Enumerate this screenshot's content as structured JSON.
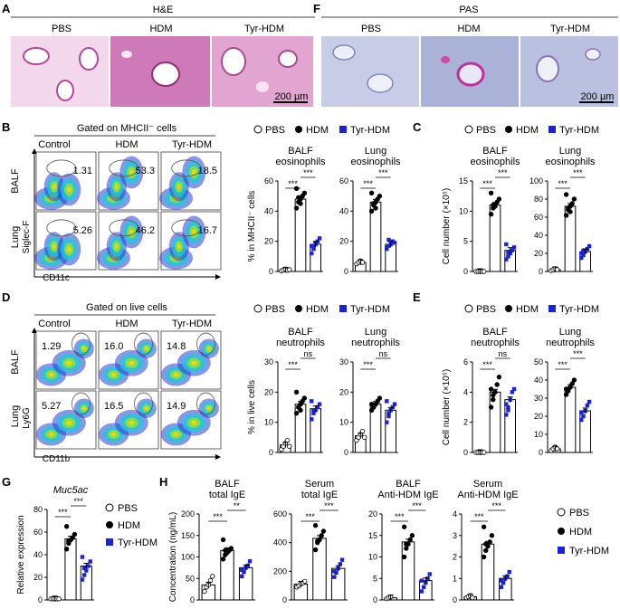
{
  "panels": {
    "A": {
      "letter": "A",
      "header": "H&E",
      "groups": [
        "PBS",
        "HDM",
        "Tyr-HDM"
      ],
      "scale": "200 µm"
    },
    "F": {
      "letter": "F",
      "header": "PAS",
      "groups": [
        "PBS",
        "HDM",
        "Tyr-HDM"
      ],
      "scale": "200 µm"
    },
    "B": {
      "letter": "B",
      "gate": "Gated on MHCII⁻ cells",
      "cols": [
        "Control",
        "HDM",
        "Tyr-HDM"
      ],
      "rows": [
        "BALF",
        "Lung"
      ],
      "yaxis": "Siglec-F",
      "xaxis": "CD11c",
      "values": [
        [
          "1.31",
          "53.3",
          "18.5"
        ],
        [
          "5.26",
          "46.2",
          "16.7"
        ]
      ]
    },
    "D": {
      "letter": "D",
      "gate": "Gated on live cells",
      "cols": [
        "Control",
        "HDM",
        "Tyr-HDM"
      ],
      "rows": [
        "BALF",
        "Lung"
      ],
      "yaxis": "Ly6G",
      "xaxis": "CD11b",
      "values": [
        [
          "1.29",
          "16.0",
          "14.8"
        ],
        [
          "5.27",
          "16.5",
          "14.9"
        ]
      ]
    },
    "C": {
      "letter": "C"
    },
    "E": {
      "letter": "E"
    },
    "G": {
      "letter": "G"
    },
    "H": {
      "letter": "H"
    }
  },
  "legend": {
    "pbs": "PBS",
    "hdm": "HDM",
    "tyr": "Tyr-HDM"
  },
  "colors": {
    "pbs": "#ffffff",
    "hdm": "#000000",
    "tyr": "#1a22d8",
    "he": "#cc5aa8",
    "pas": "#9aa6d0"
  },
  "chart_data": [
    {
      "id": "B-balf",
      "type": "bar",
      "title": "BALF\neosinophils",
      "ylabel": "% in MHCII⁻ cells",
      "ylim": [
        0,
        60
      ],
      "ticks": [
        0,
        20,
        40,
        60
      ],
      "categories": [
        "PBS",
        "HDM",
        "Tyr-HDM"
      ],
      "values": [
        1,
        48,
        18
      ],
      "sig": [
        [
          "***",
          0,
          1
        ],
        [
          "***",
          1,
          2
        ]
      ],
      "points": [
        [
          0.5,
          1,
          1.5,
          0.8,
          1.2
        ],
        [
          42,
          46,
          48,
          50,
          52,
          55,
          49,
          45
        ],
        [
          12,
          15,
          18,
          20,
          22,
          17,
          16,
          19
        ]
      ]
    },
    {
      "id": "B-lung",
      "type": "bar",
      "title": "Lung\neosinophils",
      "ylim": [
        0,
        60
      ],
      "ticks": [
        0,
        20,
        40,
        60
      ],
      "categories": [
        "PBS",
        "HDM",
        "Tyr-HDM"
      ],
      "values": [
        6,
        46,
        18
      ],
      "sig": [
        [
          "***",
          0,
          1
        ],
        [
          "***",
          1,
          2
        ]
      ],
      "points": [
        [
          5,
          6,
          7,
          6
        ],
        [
          40,
          44,
          46,
          48,
          50,
          52,
          45,
          42
        ],
        [
          15,
          17,
          18,
          20,
          19,
          16,
          21
        ]
      ]
    },
    {
      "id": "C-balf",
      "type": "bar",
      "title": "BALF\neosinophils",
      "ylabel": "Cell number (×10⁵)",
      "ylim": [
        0,
        15
      ],
      "ticks": [
        0,
        5,
        10,
        15
      ],
      "categories": [
        "PBS",
        "HDM",
        "Tyr-HDM"
      ],
      "values": [
        0,
        11,
        3.5
      ],
      "sig": [
        [
          "***",
          0,
          1
        ],
        [
          "***",
          1,
          2
        ]
      ],
      "points": [
        [
          0,
          0,
          0,
          0,
          0
        ],
        [
          9.5,
          10.5,
          11,
          11.5,
          12,
          13,
          11,
          10.8
        ],
        [
          2,
          2.5,
          3,
          3.5,
          4,
          4.5,
          3.2
        ]
      ]
    },
    {
      "id": "C-lung",
      "type": "bar",
      "title": "Lung\neosinophils",
      "ylim": [
        0,
        100
      ],
      "ticks": [
        0,
        20,
        40,
        60,
        80,
        100
      ],
      "categories": [
        "PBS",
        "HDM",
        "Tyr-HDM"
      ],
      "values": [
        2,
        72,
        22
      ],
      "sig": [
        [
          "***",
          0,
          1
        ],
        [
          "***",
          1,
          2
        ]
      ],
      "points": [
        [
          1,
          2,
          3,
          2
        ],
        [
          62,
          68,
          72,
          75,
          80,
          85,
          70,
          66
        ],
        [
          15,
          18,
          22,
          25,
          28,
          20,
          23
        ]
      ]
    },
    {
      "id": "D-balf",
      "type": "bar",
      "title": "BALF\nneutrophils",
      "ylabel": "% in live cells",
      "ylim": [
        0,
        30
      ],
      "ticks": [
        0,
        10,
        20,
        30
      ],
      "categories": [
        "PBS",
        "HDM",
        "Tyr-HDM"
      ],
      "values": [
        2.5,
        16,
        14.5
      ],
      "sig": [
        [
          "***",
          0,
          1
        ],
        [
          "ns",
          1,
          2
        ]
      ],
      "points": [
        [
          1,
          2,
          3,
          4,
          2
        ],
        [
          13,
          15,
          16,
          17,
          18,
          20,
          15,
          14
        ],
        [
          11,
          13,
          14,
          15,
          16,
          17,
          14
        ]
      ]
    },
    {
      "id": "D-lung",
      "type": "bar",
      "title": "Lung\nneutrophils",
      "ylim": [
        0,
        30
      ],
      "ticks": [
        0,
        10,
        20,
        30
      ],
      "categories": [
        "PBS",
        "HDM",
        "Tyr-HDM"
      ],
      "values": [
        5.5,
        16,
        14
      ],
      "sig": [
        [
          "***",
          0,
          1
        ],
        [
          "ns",
          1,
          2
        ]
      ],
      "points": [
        [
          4,
          5,
          6,
          7,
          5
        ],
        [
          14,
          15,
          16,
          17,
          18,
          16,
          15
        ],
        [
          10,
          12,
          14,
          15,
          16,
          17,
          13
        ]
      ]
    },
    {
      "id": "E-balf",
      "type": "bar",
      "title": "BALF\nneutrophils",
      "ylabel": "Cell number (×10⁵)",
      "ylim": [
        0,
        6
      ],
      "ticks": [
        0,
        2,
        4,
        6
      ],
      "categories": [
        "PBS",
        "HDM",
        "Tyr-HDM"
      ],
      "values": [
        0,
        4,
        3.5
      ],
      "sig": [
        [
          "***",
          0,
          1
        ],
        [
          "ns",
          1,
          2
        ]
      ],
      "points": [
        [
          0,
          0,
          0,
          0,
          0
        ],
        [
          3,
          3.5,
          4,
          4.5,
          5,
          4.2,
          3.8
        ],
        [
          2.5,
          3,
          3.5,
          4,
          4.2,
          3.2,
          2.8
        ]
      ]
    },
    {
      "id": "E-lung",
      "type": "bar",
      "title": "Lung\nneutrophils",
      "ylim": [
        0,
        50
      ],
      "ticks": [
        0,
        10,
        20,
        30,
        40,
        50
      ],
      "categories": [
        "PBS",
        "HDM",
        "Tyr-HDM"
      ],
      "values": [
        2,
        36,
        23
      ],
      "sig": [
        [
          "***",
          0,
          1
        ],
        [
          "***",
          1,
          2
        ]
      ],
      "points": [
        [
          1,
          2,
          3,
          2
        ],
        [
          32,
          34,
          36,
          38,
          40,
          35
        ],
        [
          18,
          20,
          23,
          26,
          28,
          22
        ]
      ]
    },
    {
      "id": "G",
      "type": "bar",
      "title": "Muc5ac",
      "ylabel": "Relative expression",
      "ylim": [
        0,
        80
      ],
      "ticks": [
        0,
        20,
        40,
        60,
        80
      ],
      "categories": [
        "PBS",
        "HDM",
        "Tyr-HDM"
      ],
      "values": [
        1,
        54,
        30
      ],
      "sig": [
        [
          "***",
          0,
          1
        ],
        [
          "***",
          1,
          2
        ]
      ],
      "points": [
        [
          1,
          1,
          1,
          1,
          1
        ],
        [
          45,
          50,
          53,
          55,
          58,
          65,
          52
        ],
        [
          18,
          22,
          26,
          30,
          34,
          38,
          28
        ]
      ]
    },
    {
      "id": "H-balf",
      "type": "bar",
      "title": "BALF\ntotal IgE",
      "ylabel": "Concentration (ng/mL)",
      "ylim": [
        0,
        200
      ],
      "ticks": [
        0,
        50,
        100,
        150,
        200
      ],
      "categories": [
        "PBS",
        "HDM",
        "Tyr-HDM"
      ],
      "values": [
        35,
        115,
        75
      ],
      "sig": [
        [
          "***",
          0,
          1
        ],
        [
          "**",
          1,
          2
        ]
      ],
      "points": [
        [
          20,
          30,
          35,
          45,
          55
        ],
        [
          95,
          105,
          110,
          115,
          120,
          140,
          115
        ],
        [
          55,
          65,
          75,
          80,
          90,
          70
        ]
      ]
    },
    {
      "id": "H-serum",
      "type": "bar",
      "title": "Serum\ntotal IgE",
      "ylim": [
        0,
        600
      ],
      "ticks": [
        0,
        200,
        400,
        600
      ],
      "categories": [
        "PBS",
        "HDM",
        "Tyr-HDM"
      ],
      "values": [
        110,
        430,
        220
      ],
      "sig": [
        [
          "***",
          0,
          1
        ],
        [
          "***",
          1,
          2
        ]
      ],
      "points": [
        [
          90,
          100,
          110,
          120,
          130
        ],
        [
          350,
          400,
          420,
          450,
          480,
          520,
          410
        ],
        [
          160,
          190,
          220,
          250,
          280,
          200
        ]
      ]
    },
    {
      "id": "H-balf-anti",
      "type": "bar",
      "title": "BALF\nAnti-HDM IgE",
      "ylim": [
        0,
        20
      ],
      "ticks": [
        0,
        5,
        10,
        15,
        20
      ],
      "categories": [
        "PBS",
        "HDM",
        "Tyr-HDM"
      ],
      "values": [
        0.5,
        13.5,
        4.5
      ],
      "sig": [
        [
          "***",
          0,
          1
        ],
        [
          "***",
          1,
          2
        ]
      ],
      "points": [
        [
          0.3,
          0.5,
          0.7
        ],
        [
          10,
          12,
          13,
          14,
          15,
          17,
          13
        ],
        [
          2,
          3,
          4,
          5,
          6,
          4.5
        ]
      ]
    },
    {
      "id": "H-serum-anti",
      "type": "bar",
      "title": "Serum\nAnti-HDM IgE",
      "ylim": [
        0,
        4
      ],
      "ticks": [
        0,
        1,
        2,
        3,
        4
      ],
      "categories": [
        "PBS",
        "HDM",
        "Tyr-HDM"
      ],
      "values": [
        0.15,
        2.6,
        1.0
      ],
      "sig": [
        [
          "***",
          0,
          1
        ],
        [
          "***",
          1,
          2
        ]
      ],
      "points": [
        [
          0.1,
          0.15,
          0.2,
          0.1
        ],
        [
          2,
          2.3,
          2.5,
          2.7,
          3,
          3.4,
          2.6
        ],
        [
          0.6,
          0.8,
          1,
          1.1,
          1.3,
          0.9
        ]
      ]
    }
  ]
}
